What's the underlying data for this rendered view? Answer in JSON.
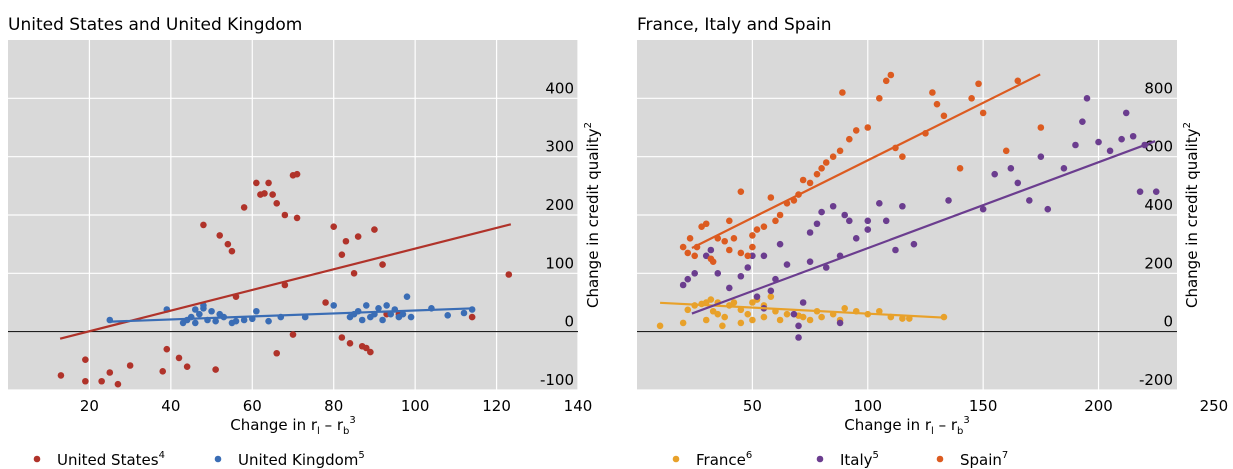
{
  "chart_data": [
    {
      "type": "scatter",
      "title": "United States and United Kingdom",
      "xlabel": {
        "text": "Change in r",
        "sub1": "l",
        "mid": " – r",
        "sub2": "b",
        "sup": "3"
      },
      "ylabel": {
        "text": "Change in credit quality",
        "sup": "2"
      },
      "xlim": [
        0,
        140
      ],
      "ylim": [
        -100,
        500
      ],
      "xticks": [
        20,
        40,
        60,
        80,
        100,
        120,
        140
      ],
      "yticks": [
        -100,
        0,
        100,
        200,
        300,
        400
      ],
      "grid": true,
      "hline": 0,
      "series": [
        {
          "name": "United States",
          "footnote": "4",
          "color": "#b0332a",
          "x": [
            13,
            19,
            19,
            23,
            25,
            27,
            30,
            38,
            39,
            42,
            44,
            48,
            51,
            52,
            54,
            55,
            56,
            58,
            61,
            62,
            63,
            64,
            65,
            66,
            66,
            68,
            68,
            70,
            70,
            71,
            71,
            78,
            80,
            82,
            82,
            83,
            84,
            85,
            86,
            87,
            88,
            89,
            90,
            92,
            93,
            96,
            114,
            123
          ],
          "values": [
            -75,
            -48,
            -85,
            -85,
            -70,
            -90,
            -58,
            -68,
            -30,
            -45,
            -60,
            183,
            -65,
            165,
            150,
            138,
            60,
            213,
            255,
            235,
            237,
            255,
            235,
            220,
            -37,
            80,
            200,
            -5,
            268,
            270,
            195,
            50,
            180,
            132,
            -10,
            155,
            -20,
            100,
            163,
            -25,
            -28,
            -35,
            175,
            115,
            30,
            30,
            25,
            98
          ],
          "fit": {
            "x": [
              12.8,
              123.5
            ],
            "y": [
              -12,
              184
            ]
          }
        },
        {
          "name": "United Kingdom",
          "footnote": "5",
          "color": "#3a6db5",
          "x": [
            25,
            39,
            43,
            44,
            45,
            46,
            46,
            47,
            48,
            48,
            49,
            50,
            51,
            52,
            53,
            55,
            56,
            58,
            60,
            61,
            64,
            67,
            73,
            80,
            84,
            85,
            86,
            87,
            88,
            89,
            90,
            91,
            92,
            93,
            94,
            95,
            96,
            97,
            98,
            99,
            104,
            108,
            112,
            114
          ],
          "values": [
            20,
            38,
            15,
            20,
            25,
            38,
            15,
            30,
            40,
            45,
            20,
            35,
            18,
            30,
            25,
            15,
            18,
            20,
            22,
            35,
            18,
            25,
            25,
            45,
            25,
            30,
            35,
            20,
            45,
            25,
            30,
            40,
            20,
            45,
            30,
            38,
            25,
            30,
            60,
            25,
            40,
            28,
            32,
            38
          ],
          "fit": {
            "x": [
              24.6,
              114.4
            ],
            "y": [
              17,
              40
            ]
          }
        }
      ]
    },
    {
      "type": "scatter",
      "title": "France, Italy and Spain",
      "xlabel": {
        "text": "Change in r",
        "sub1": "l",
        "mid": " – r",
        "sub2": "b",
        "sup": "3"
      },
      "ylabel": {
        "text": "Change in credit quality",
        "sup": "2"
      },
      "xlim": [
        0,
        234
      ],
      "ylim": [
        -200,
        1000
      ],
      "xticks": [
        50,
        100,
        150,
        200,
        250
      ],
      "yticks": [
        -200,
        0,
        200,
        400,
        600,
        800
      ],
      "grid": true,
      "hline": 0,
      "series": [
        {
          "name": "France",
          "footnote": "6",
          "color": "#e8a12a",
          "x": [
            10,
            20,
            22,
            25,
            28,
            30,
            30,
            32,
            33,
            35,
            35,
            37,
            38,
            40,
            42,
            45,
            45,
            48,
            50,
            50,
            52,
            55,
            55,
            58,
            60,
            62,
            65,
            70,
            72,
            75,
            78,
            80,
            85,
            88,
            90,
            95,
            100,
            105,
            110,
            115,
            118,
            133
          ],
          "values": [
            20,
            30,
            75,
            90,
            95,
            40,
            100,
            110,
            70,
            60,
            100,
            20,
            50,
            90,
            100,
            75,
            30,
            60,
            100,
            40,
            110,
            50,
            90,
            120,
            70,
            40,
            60,
            55,
            50,
            40,
            70,
            50,
            60,
            40,
            80,
            70,
            60,
            70,
            50,
            45,
            45,
            50
          ],
          "fit": {
            "x": [
              10,
              133.5
            ],
            "y": [
              99,
              48
            ]
          }
        },
        {
          "name": "Italy",
          "footnote": "5",
          "color": "#6b3d8f",
          "x": [
            20,
            22,
            25,
            30,
            32,
            35,
            40,
            45,
            48,
            50,
            52,
            55,
            55,
            58,
            60,
            62,
            65,
            68,
            70,
            70,
            72,
            75,
            75,
            78,
            80,
            82,
            85,
            88,
            88,
            90,
            92,
            95,
            100,
            100,
            105,
            108,
            112,
            115,
            120,
            135,
            150,
            155,
            162,
            165,
            170,
            175,
            178,
            185,
            190,
            193,
            195,
            200,
            205,
            210,
            212,
            215,
            218,
            220,
            225
          ],
          "values": [
            160,
            180,
            200,
            260,
            280,
            200,
            150,
            190,
            220,
            260,
            120,
            80,
            260,
            140,
            180,
            300,
            230,
            60,
            20,
            -20,
            100,
            240,
            340,
            370,
            410,
            220,
            430,
            260,
            30,
            400,
            380,
            320,
            380,
            350,
            440,
            380,
            280,
            430,
            300,
            450,
            420,
            540,
            560,
            510,
            450,
            600,
            420,
            560,
            640,
            720,
            800,
            650,
            620,
            660,
            750,
            670,
            480,
            640,
            480
          ],
          "fit": {
            "x": [
              23.8,
              224.5
            ],
            "y": [
              62,
              653
            ]
          }
        },
        {
          "name": "Spain",
          "footnote": "7",
          "color": "#dc5b20",
          "x": [
            20,
            22,
            23,
            25,
            26,
            28,
            30,
            32,
            33,
            35,
            38,
            40,
            40,
            42,
            45,
            45,
            48,
            50,
            50,
            52,
            55,
            58,
            60,
            62,
            65,
            68,
            70,
            72,
            75,
            78,
            80,
            82,
            85,
            88,
            89,
            92,
            95,
            100,
            105,
            108,
            110,
            112,
            115,
            125,
            128,
            130,
            133,
            140,
            145,
            148,
            150,
            160,
            165,
            175
          ],
          "values": [
            290,
            270,
            320,
            260,
            290,
            360,
            370,
            250,
            240,
            320,
            310,
            280,
            380,
            320,
            480,
            270,
            260,
            290,
            330,
            350,
            360,
            460,
            380,
            400,
            440,
            450,
            470,
            520,
            510,
            540,
            560,
            580,
            600,
            620,
            820,
            660,
            690,
            700,
            800,
            860,
            880,
            630,
            600,
            680,
            820,
            780,
            740,
            560,
            800,
            850,
            750,
            620,
            860,
            700
          ],
          "fit": {
            "x": [
              23.8,
              174.7
            ],
            "y": [
              287,
              882
            ]
          }
        }
      ]
    }
  ]
}
